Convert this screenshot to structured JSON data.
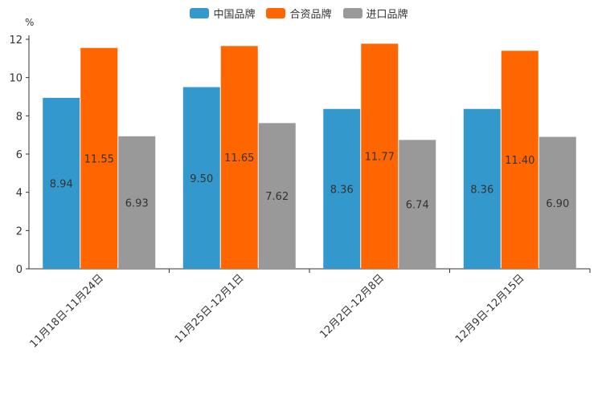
{
  "chart_data": {
    "type": "bar",
    "unit_label": "%",
    "categories": [
      "11月18日-11月24日",
      "11月25日-12月1日",
      "12月2日-12月8日",
      "12月9日-12月15日"
    ],
    "series": [
      {
        "name": "中国品牌",
        "color": "#3399cc",
        "values": [
          8.94,
          9.5,
          8.36,
          8.36
        ],
        "labels": [
          "8.94",
          "9.50",
          "8.36",
          "8.36"
        ]
      },
      {
        "name": "合资品牌",
        "color": "#ff6600",
        "values": [
          11.55,
          11.65,
          11.77,
          11.4
        ],
        "labels": [
          "11.55",
          "11.65",
          "11.77",
          "11.40"
        ]
      },
      {
        "name": "进口品牌",
        "color": "#999999",
        "values": [
          6.93,
          7.62,
          6.74,
          6.9
        ],
        "labels": [
          "6.93",
          "7.62",
          "6.74",
          "6.90"
        ]
      }
    ],
    "yticks": [
      "0",
      "2",
      "4",
      "6",
      "8",
      "10",
      "12"
    ],
    "ylim": [
      0,
      12
    ],
    "legend_position": "top-center",
    "grid": false
  }
}
